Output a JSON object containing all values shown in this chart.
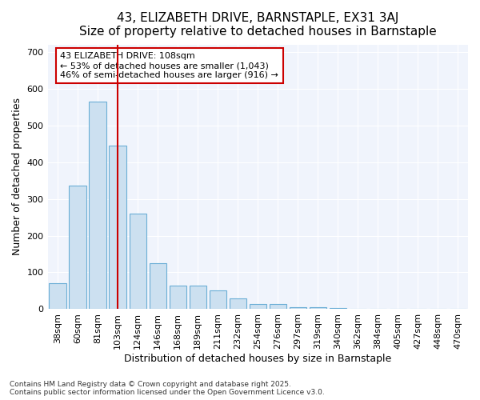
{
  "title": "43, ELIZABETH DRIVE, BARNSTAPLE, EX31 3AJ",
  "subtitle": "Size of property relative to detached houses in Barnstaple",
  "xlabel": "Distribution of detached houses by size in Barnstaple",
  "ylabel": "Number of detached properties",
  "categories": [
    "38sqm",
    "60sqm",
    "81sqm",
    "103sqm",
    "124sqm",
    "146sqm",
    "168sqm",
    "189sqm",
    "211sqm",
    "232sqm",
    "254sqm",
    "276sqm",
    "297sqm",
    "319sqm",
    "340sqm",
    "362sqm",
    "384sqm",
    "405sqm",
    "427sqm",
    "448sqm",
    "470sqm"
  ],
  "values": [
    70,
    335,
    565,
    445,
    260,
    125,
    65,
    65,
    52,
    30,
    15,
    15,
    5,
    5,
    3,
    0,
    0,
    0,
    0,
    0,
    2
  ],
  "bar_color": "#cce0f0",
  "bar_edge_color": "#6baed6",
  "bar_edge_width": 0.8,
  "red_line_x": 3.0,
  "red_line_color": "#cc0000",
  "annotation_line1": "43 ELIZABETH DRIVE: 108sqm",
  "annotation_line2": "← 53% of detached houses are smaller (1,043)",
  "annotation_line3": "46% of semi-detached houses are larger (916) →",
  "annotation_box_color": "#ffffff",
  "annotation_box_edge_color": "#cc0000",
  "annotation_fontsize": 8,
  "title_fontsize": 11,
  "subtitle_fontsize": 9.5,
  "xlabel_fontsize": 9,
  "ylabel_fontsize": 9,
  "tick_fontsize": 8,
  "ylim": [
    0,
    720
  ],
  "yticks": [
    0,
    100,
    200,
    300,
    400,
    500,
    600,
    700
  ],
  "plot_bg_color": "#f0f4fc",
  "fig_bg_color": "#ffffff",
  "grid_color": "#ffffff",
  "footer_line1": "Contains HM Land Registry data © Crown copyright and database right 2025.",
  "footer_line2": "Contains public sector information licensed under the Open Government Licence v3.0."
}
